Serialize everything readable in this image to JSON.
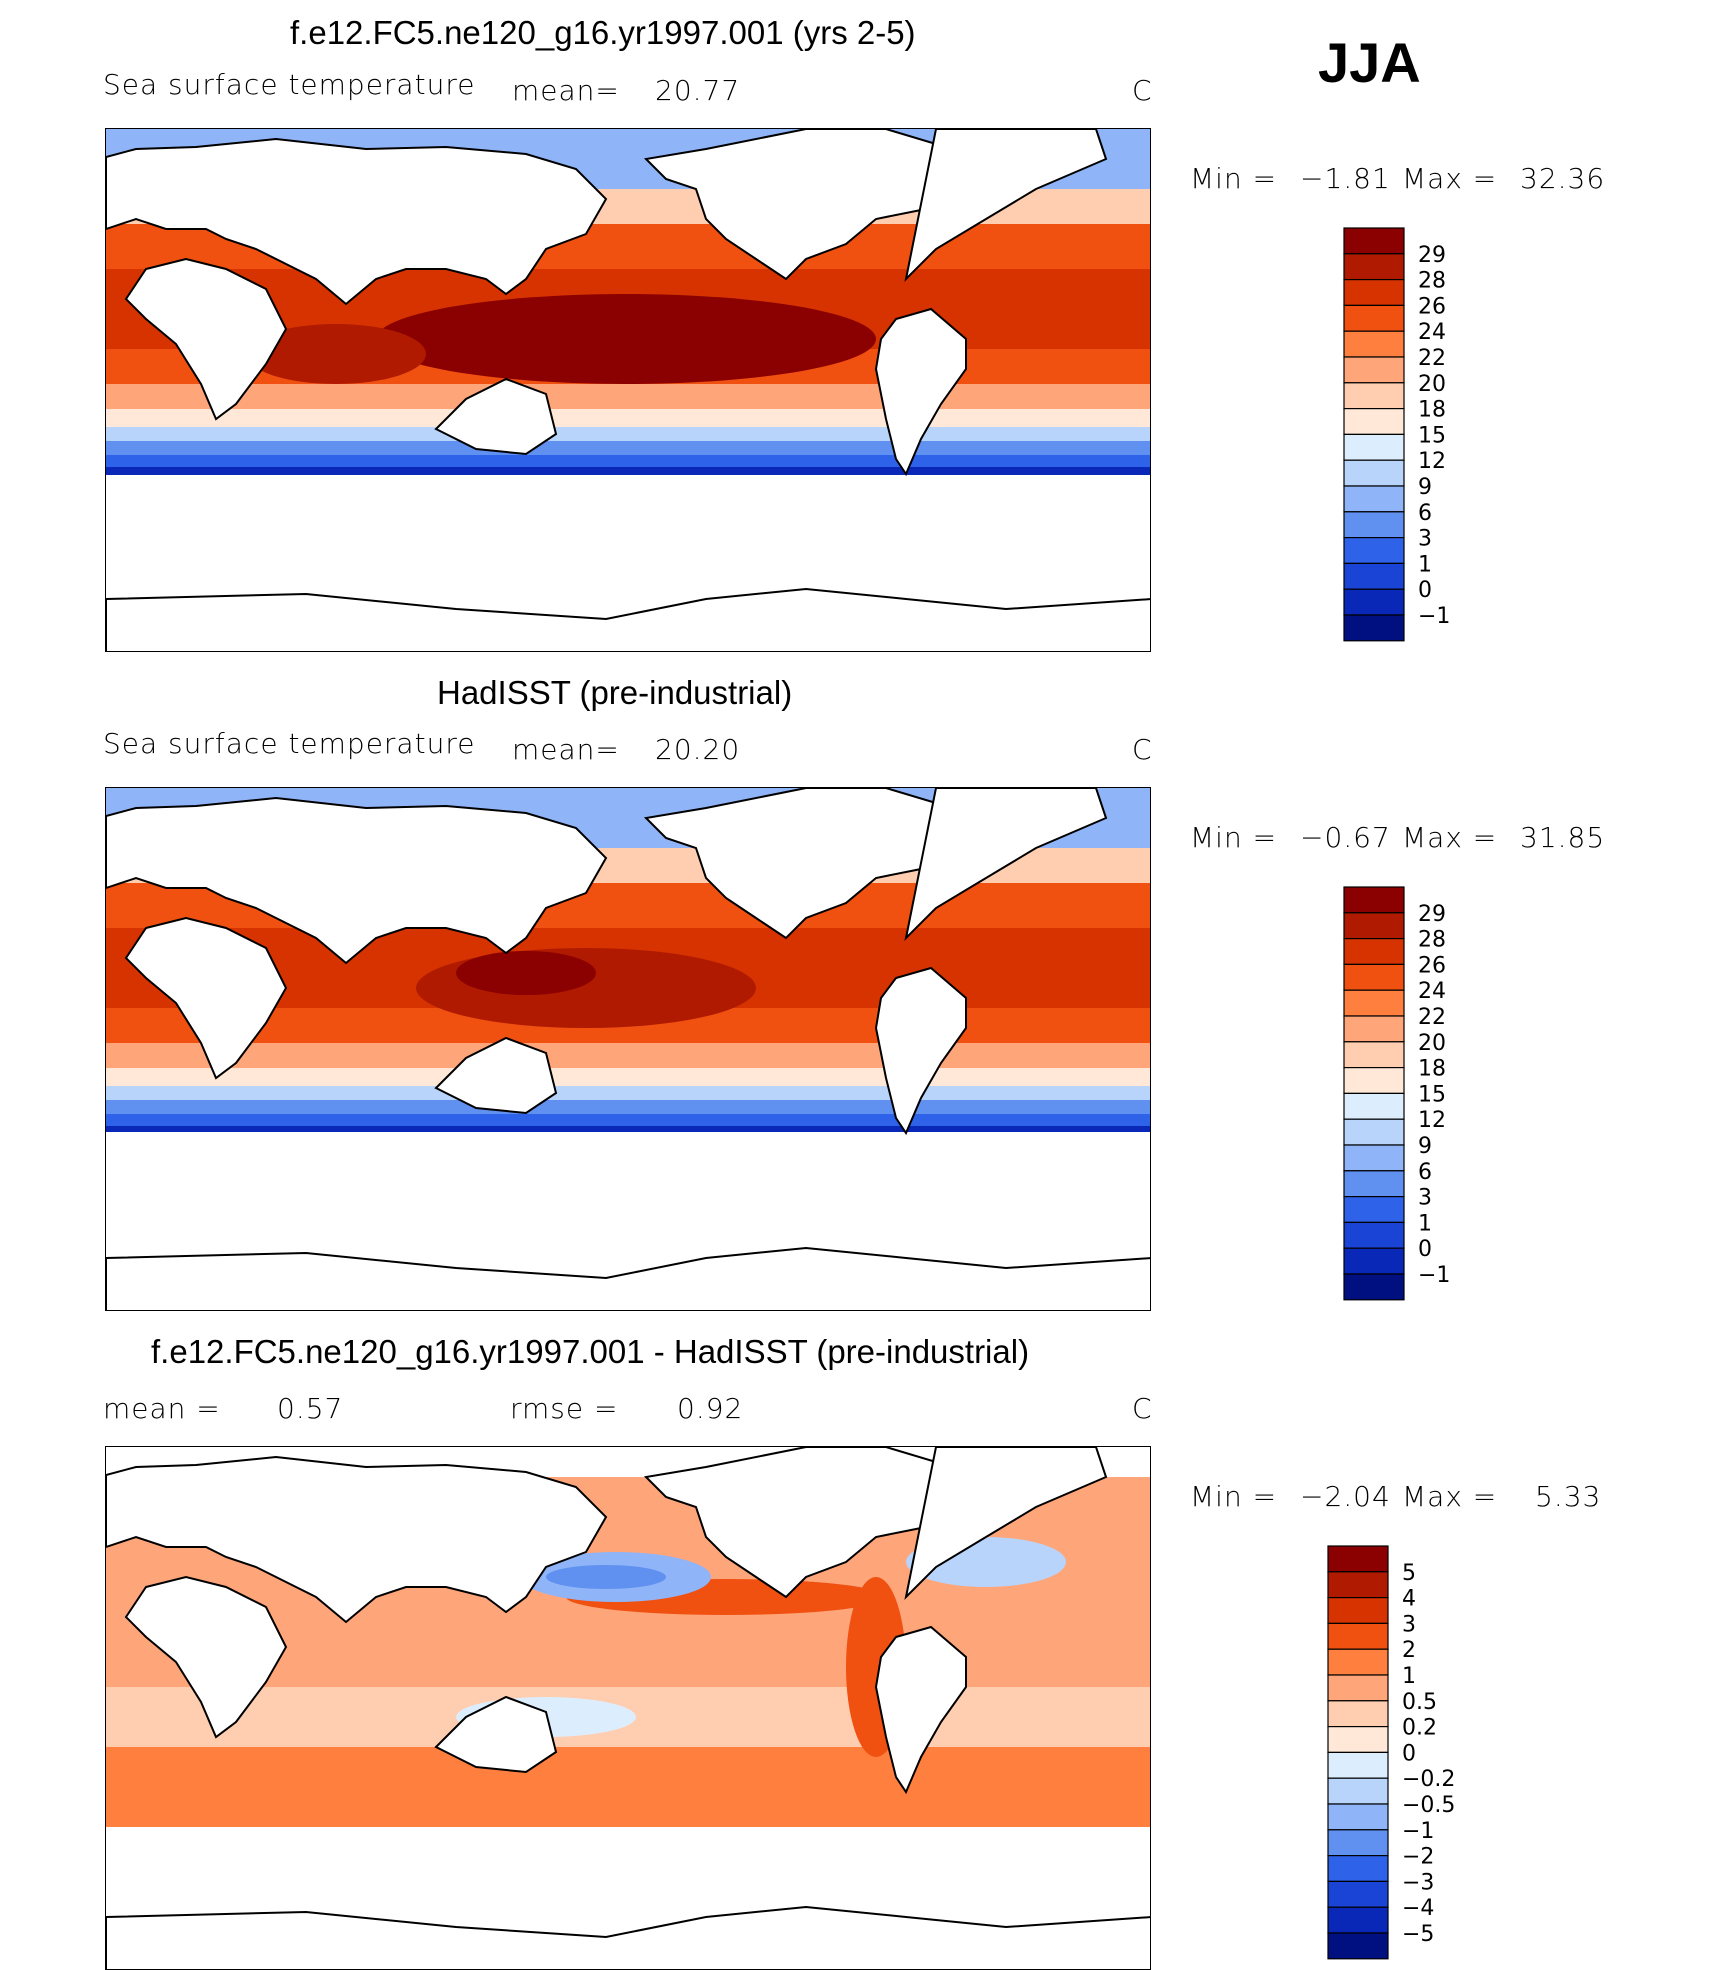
{
  "season_label": "JJA",
  "land_color": "#ffffff",
  "coast_color": "#000000",
  "chart_data": [
    {
      "type": "heatmap",
      "title": "f.e12.FC5.ne120_g16.yr1997.001 (yrs 2-5)",
      "subtitle": "Sea surface temperature",
      "mean_label": "mean=",
      "mean_value": "20.77",
      "units": "C",
      "min_label": "Min =",
      "min_value": "−1.81",
      "max_label": "Max =",
      "max_value": "32.36",
      "colorbar": {
        "ticks": [
          "29",
          "28",
          "26",
          "24",
          "22",
          "20",
          "18",
          "15",
          "12",
          "9",
          "6",
          "3",
          "1",
          "0",
          "−1"
        ],
        "colors": [
          "#8b0000",
          "#b01a00",
          "#d63300",
          "#f05010",
          "#ff7f3f",
          "#ffa57a",
          "#ffcdb0",
          "#ffe8d8",
          "#dceefd",
          "#b9d4fb",
          "#8fb5f8",
          "#6090f0",
          "#2e62e8",
          "#1a44d6",
          "#0a28b8",
          "#001080"
        ]
      }
    },
    {
      "type": "heatmap",
      "title": "HadISST (pre-industrial)",
      "subtitle": "Sea surface temperature",
      "mean_label": "mean=",
      "mean_value": "20.20",
      "units": "C",
      "min_label": "Min =",
      "min_value": "−0.67",
      "max_label": "Max =",
      "max_value": "31.85",
      "colorbar": {
        "ticks": [
          "29",
          "28",
          "26",
          "24",
          "22",
          "20",
          "18",
          "15",
          "12",
          "9",
          "6",
          "3",
          "1",
          "0",
          "−1"
        ],
        "colors": [
          "#8b0000",
          "#b01a00",
          "#d63300",
          "#f05010",
          "#ff7f3f",
          "#ffa57a",
          "#ffcdb0",
          "#ffe8d8",
          "#dceefd",
          "#b9d4fb",
          "#8fb5f8",
          "#6090f0",
          "#2e62e8",
          "#1a44d6",
          "#0a28b8",
          "#001080"
        ]
      }
    },
    {
      "type": "heatmap",
      "title": "f.e12.FC5.ne120_g16.yr1997.001 - HadISST (pre-industrial)",
      "mean_label": "mean =",
      "mean_value": "0.57",
      "rmse_label": "rmse =",
      "rmse_value": "0.92",
      "units": "C",
      "min_label": "Min =",
      "min_value": "−2.04",
      "max_label": "Max =",
      "max_value": "5.33",
      "colorbar": {
        "ticks": [
          "5",
          "4",
          "3",
          "2",
          "1",
          "0.5",
          "0.2",
          "0",
          "−0.2",
          "−0.5",
          "−1",
          "−2",
          "−3",
          "−4",
          "−5"
        ],
        "colors": [
          "#8b0000",
          "#b01a00",
          "#d63300",
          "#f05010",
          "#ff7f3f",
          "#ffa57a",
          "#ffcdb0",
          "#ffe8d8",
          "#dceefd",
          "#b9d4fb",
          "#8fb5f8",
          "#6090f0",
          "#2e62e8",
          "#1a44d6",
          "#0a28b8",
          "#001080"
        ]
      }
    }
  ]
}
